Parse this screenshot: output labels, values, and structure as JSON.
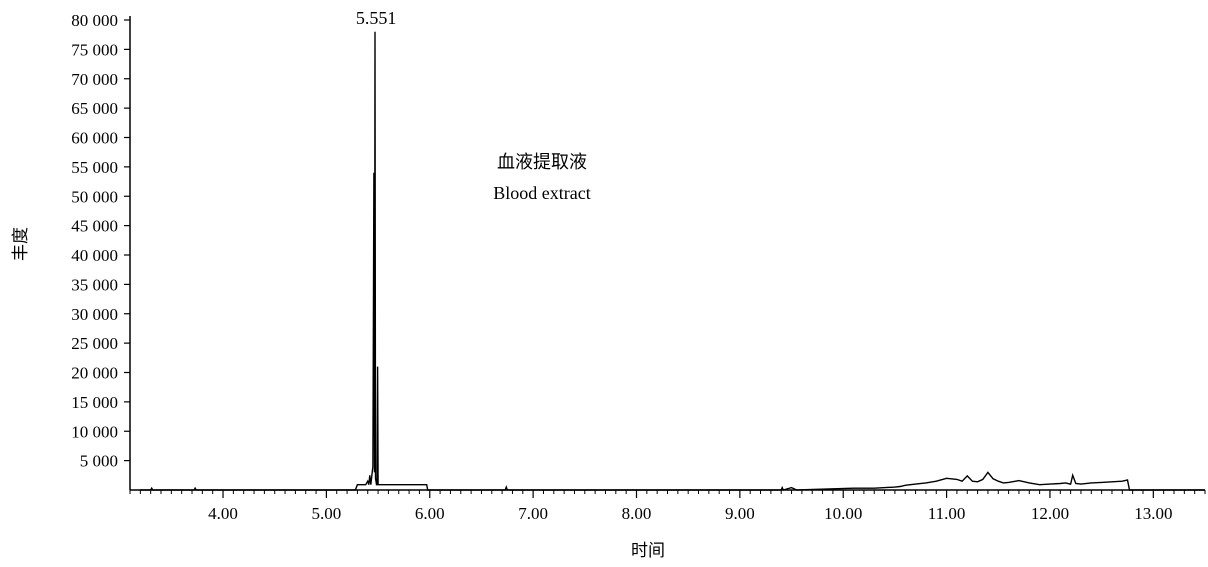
{
  "chart_data": {
    "type": "line",
    "title": "",
    "xlabel": "时间",
    "ylabel": "丰度",
    "xlim": [
      3.1,
      13.5
    ],
    "ylim": [
      0,
      80000
    ],
    "x_ticks": [
      "4.00",
      "5.00",
      "6.00",
      "7.00",
      "8.00",
      "9.00",
      "10.00",
      "11.00",
      "12.00",
      "13.00"
    ],
    "y_ticks": [
      "5 000",
      "10 000",
      "15 000",
      "20 000",
      "25 000",
      "30 000",
      "35 000",
      "40 000",
      "45 000",
      "50 000",
      "55 000",
      "60 000",
      "65 000",
      "70 000",
      "75 000",
      "80 000"
    ],
    "grid": false,
    "legend": "none",
    "annotations": [
      {
        "text": "5.551",
        "x": 5.5,
        "y": 77000,
        "kind": "peak-label"
      },
      {
        "text": "血液提取液",
        "kind": "sample-label"
      },
      {
        "text": "Blood extract",
        "kind": "sample-label"
      }
    ],
    "series": [
      {
        "x": [
          3.2,
          3.3,
          3.31,
          3.32,
          3.33,
          3.6,
          3.72,
          3.73,
          3.74,
          4.5,
          5.28,
          5.3,
          5.38,
          5.4,
          5.41,
          5.42,
          5.43,
          5.45,
          5.46,
          5.465,
          5.47,
          5.475,
          5.48,
          5.485,
          5.49,
          5.495,
          5.5,
          5.505,
          5.51,
          5.515,
          5.52,
          5.55,
          5.7,
          5.97,
          5.98,
          6.5,
          6.73,
          6.74,
          6.75,
          7.5,
          8.5,
          9.4,
          9.41,
          9.42,
          9.5,
          9.55,
          10.1,
          10.2,
          10.3,
          10.5,
          10.55,
          10.6,
          10.7,
          10.8,
          10.9,
          11.0,
          11.1,
          11.15,
          11.2,
          11.25,
          11.3,
          11.35,
          11.4,
          11.45,
          11.5,
          11.55,
          11.6,
          11.7,
          11.8,
          11.9,
          12.0,
          12.1,
          12.15,
          12.2,
          12.22,
          12.25,
          12.3,
          12.4,
          12.5,
          12.6,
          12.7,
          12.75,
          12.77,
          12.8,
          13.5
        ],
        "y": [
          0,
          0,
          300,
          0,
          0,
          0,
          0,
          300,
          0,
          0,
          0,
          900,
          900,
          1500,
          900,
          2500,
          900,
          4000,
          54000,
          3000,
          78000,
          2000,
          1500,
          900,
          900,
          21000,
          900,
          900,
          900,
          900,
          900,
          900,
          900,
          900,
          0,
          0,
          0,
          500,
          0,
          0,
          0,
          0,
          400,
          0,
          400,
          0,
          300,
          300,
          300,
          500,
          600,
          800,
          1000,
          1200,
          1500,
          2000,
          1800,
          1500,
          2400,
          1500,
          1400,
          1800,
          3000,
          1900,
          1500,
          1200,
          1300,
          1600,
          1200,
          900,
          1000,
          1100,
          1200,
          1000,
          2500,
          1100,
          1000,
          1200,
          1300,
          1400,
          1500,
          1700,
          0,
          0,
          0
        ]
      }
    ]
  }
}
